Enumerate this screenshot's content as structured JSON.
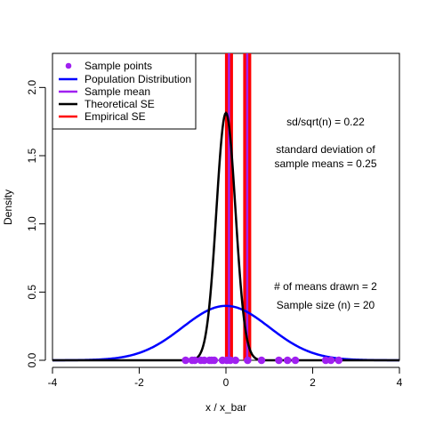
{
  "chart_data": {
    "type": "line",
    "xlabel": "x / x_bar",
    "ylabel": "Density",
    "xlim": [
      -4,
      4
    ],
    "ylim": [
      0,
      2.25
    ],
    "x_ticks": [
      -4,
      -2,
      0,
      2,
      4
    ],
    "y_ticks": [
      0.0,
      0.5,
      1.0,
      1.5,
      2.0
    ],
    "x_tick_labels": [
      "-4",
      "-2",
      "0",
      "2",
      "4"
    ],
    "y_tick_labels": [
      "0.0",
      "0.5",
      "1.0",
      "1.5",
      "2.0"
    ],
    "grid": false,
    "legend_position": "top-left",
    "legend": [
      {
        "label": "Sample points",
        "color": "#a020f0",
        "kind": "point"
      },
      {
        "label": "Population Distribution",
        "color": "#0000ff",
        "kind": "line"
      },
      {
        "label": "Sample mean",
        "color": "#a020f0",
        "kind": "line"
      },
      {
        "label": "Theoretical SE",
        "color": "#000000",
        "kind": "line"
      },
      {
        "label": "Empirical SE",
        "color": "#ff0000",
        "kind": "line"
      }
    ],
    "population_distribution": {
      "mean": 0,
      "sd": 1,
      "color": "#0000ff"
    },
    "theoretical_se": {
      "mean": 0,
      "sd": 0.22,
      "color": "#000000"
    },
    "sample_points": [
      -0.93,
      -0.78,
      -0.72,
      -0.58,
      -0.5,
      -0.38,
      -0.33,
      -0.27,
      -0.08,
      0.02,
      0.1,
      0.22,
      0.5,
      0.82,
      1.22,
      1.42,
      1.6,
      2.3,
      2.42,
      2.6
    ],
    "empirical_se_bars": [
      0.07,
      0.49
    ],
    "sample_mean_lines": [
      0.07,
      0.49
    ],
    "annotations": [
      {
        "text": "sd/sqrt(n) = 0.22"
      },
      {
        "text": "standard deviation of"
      },
      {
        "text": "sample means = 0.25"
      },
      {
        "text": "# of means drawn = 2"
      },
      {
        "text": "Sample size (n) = 20"
      }
    ]
  }
}
